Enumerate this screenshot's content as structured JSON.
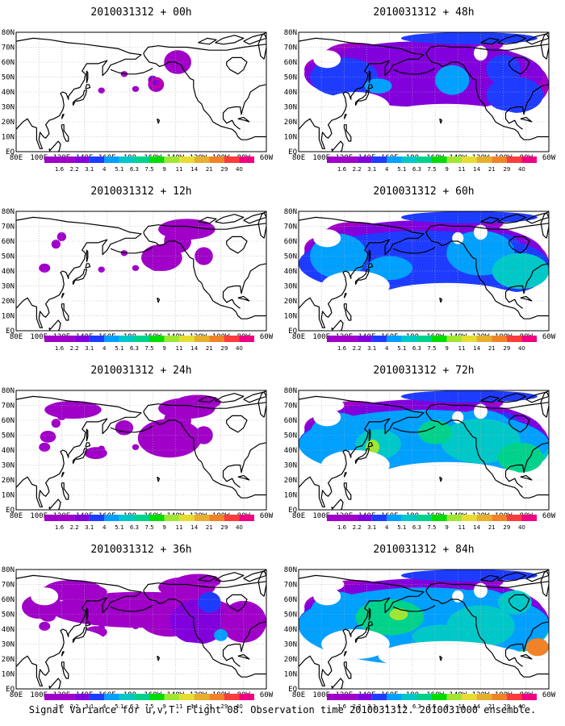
{
  "caption": "Signal Variance for u,v,T. Flight 08. Observation time 2010031312. 2010031000 ensemble.",
  "panels": [
    {
      "title": "2010031312 + 00h",
      "level": 0
    },
    {
      "title": "2010031312 + 48h",
      "level": 4
    },
    {
      "title": "2010031312 + 12h",
      "level": 1
    },
    {
      "title": "2010031312 + 60h",
      "level": 5
    },
    {
      "title": "2010031312 + 24h",
      "level": 2
    },
    {
      "title": "2010031312 + 72h",
      "level": 6
    },
    {
      "title": "2010031312 + 36h",
      "level": 3
    },
    {
      "title": "2010031312 + 84h",
      "level": 7
    }
  ],
  "lat_labels": [
    "80N",
    "70N",
    "60N",
    "50N",
    "40N",
    "30N",
    "20N",
    "10N",
    "EQ"
  ],
  "lon_labels": [
    "80E",
    "100E",
    "120E",
    "140E",
    "160E",
    "180",
    "160W",
    "140W",
    "120W",
    "100W",
    "80W",
    "60W"
  ],
  "colorbar": {
    "labels": [
      "1.6",
      "2.2",
      "3.1",
      "4",
      "5.1",
      "6.3",
      "7.5",
      "9",
      "11",
      "14",
      "21",
      "29",
      "40"
    ],
    "colors": [
      "#a000c8",
      "#8200dc",
      "#1e3cff",
      "#00a0ff",
      "#00c8c8",
      "#00d28c",
      "#00dc00",
      "#a0e632",
      "#e6dc32",
      "#e6af2d",
      "#f08228",
      "#fa3c3c",
      "#f00082"
    ]
  }
}
